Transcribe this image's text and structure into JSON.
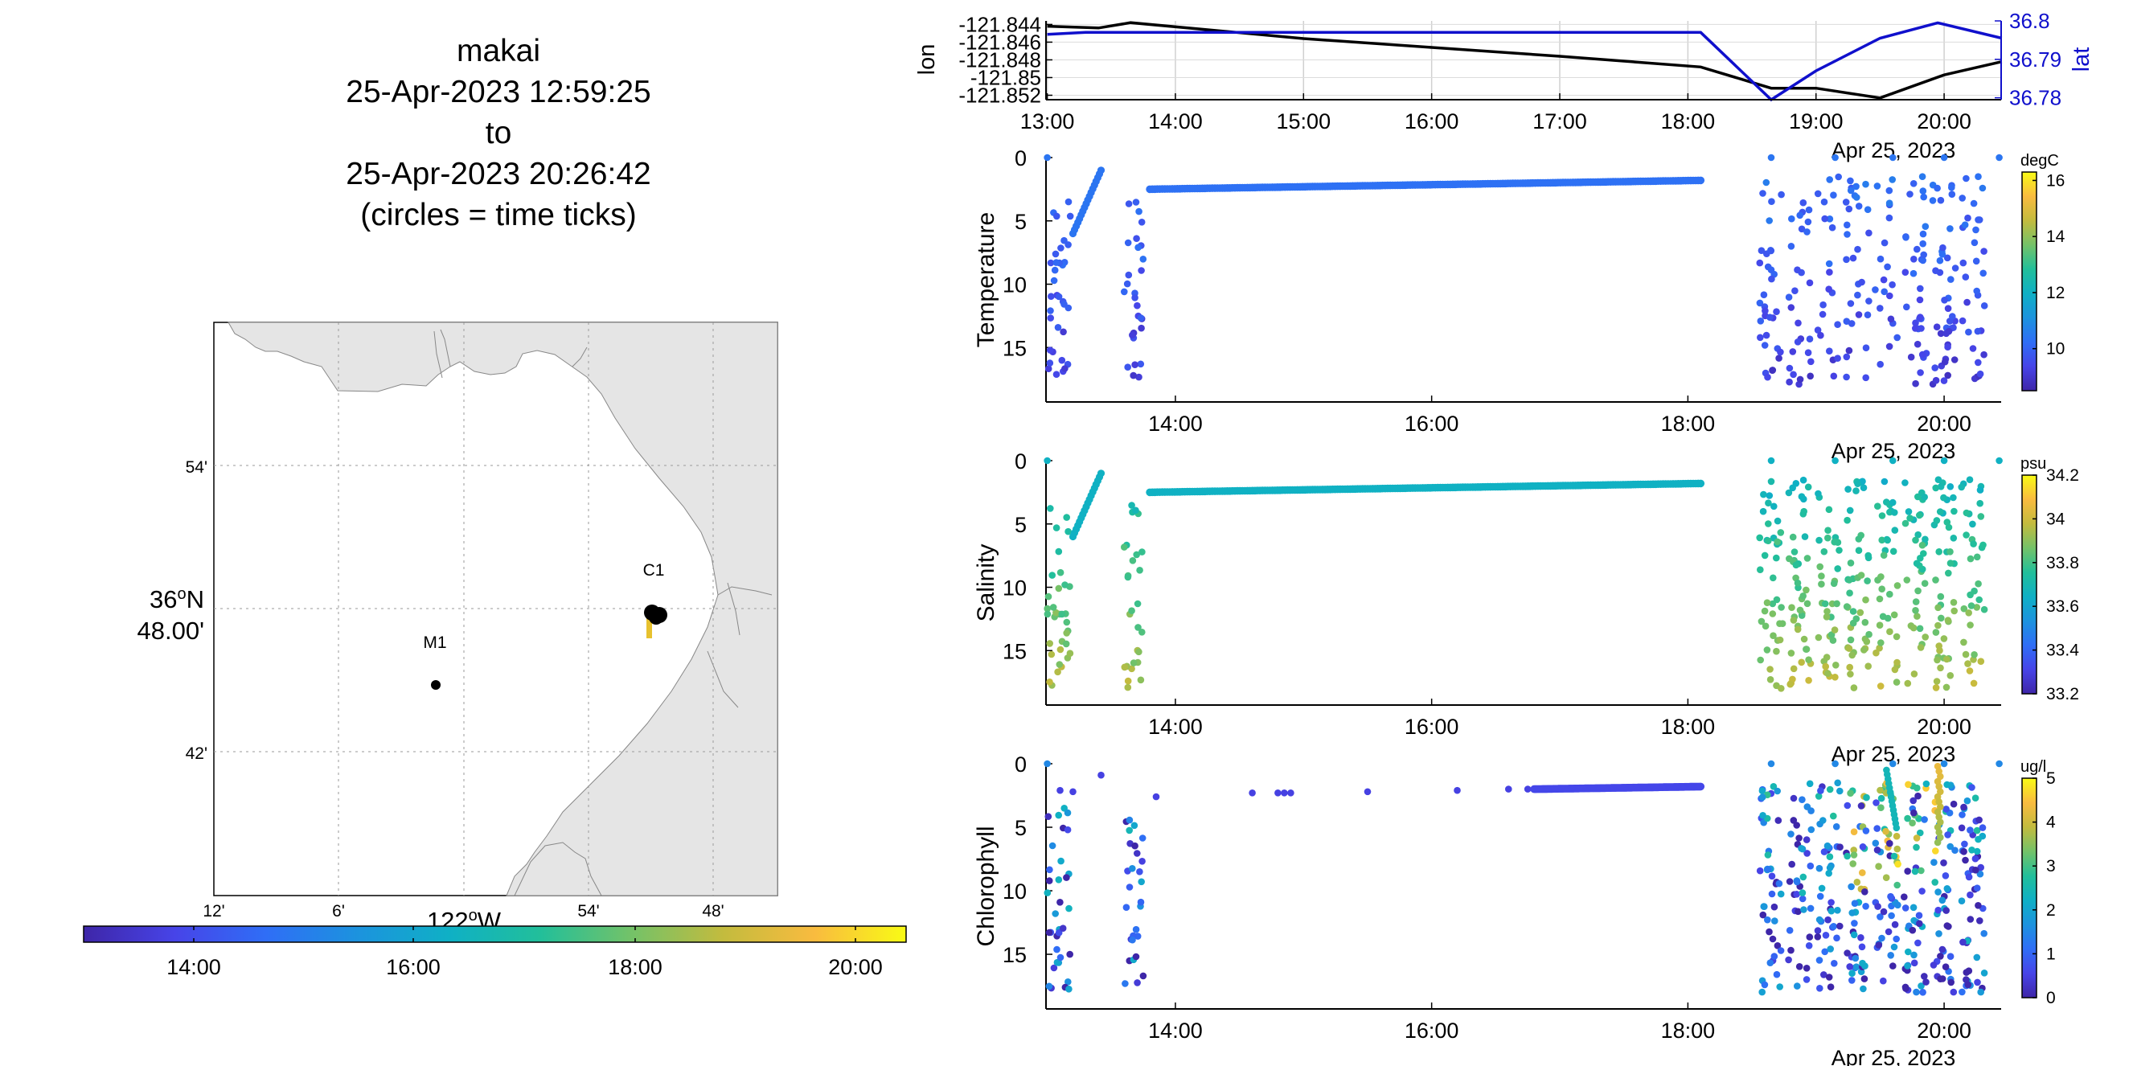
{
  "title": {
    "platform": "makai",
    "start": "25-Apr-2023 12:59:25",
    "to": "to",
    "end": "25-Apr-2023 20:26:42",
    "note": "(circles = time ticks)"
  },
  "map": {
    "lat_ticks": [
      "54'",
      "42'"
    ],
    "lat_center_deg": "36",
    "lat_center_unit": "N",
    "lat_center_min": "48.00'",
    "lon_ticks": [
      "12'",
      "6'",
      "54'",
      "48'"
    ],
    "lon_center_deg": "122",
    "lon_center_unit": "W",
    "stations": [
      {
        "label": "C1",
        "lat": 36.8,
        "lon": -121.845
      },
      {
        "label": "M1",
        "lat": 36.75,
        "lon": -122.02
      }
    ],
    "track_color": "#e7c12e",
    "colorbar_ticks": [
      "14:00",
      "16:00",
      "18:00",
      "20:00"
    ]
  },
  "chart_data": [
    {
      "type": "line",
      "name": "position",
      "x_ticks": [
        "13:00",
        "14:00",
        "15:00",
        "16:00",
        "17:00",
        "18:00",
        "19:00",
        "20:00"
      ],
      "xlabel": "Apr 25, 2023",
      "ylabel_left": "lon",
      "ylabel_right": "lat",
      "left_ticks": [
        "-121.844",
        "-121.846",
        "-121.848",
        "-121.85",
        "-121.852"
      ],
      "right_ticks": [
        "36.8",
        "36.79",
        "36.78"
      ],
      "series": [
        {
          "name": "lon",
          "color": "#000000",
          "axis": "left",
          "x_hours": [
            13.0,
            13.4,
            13.65,
            15.0,
            16.0,
            17.0,
            18.1,
            18.65,
            19.0,
            19.5,
            20.0,
            20.45
          ],
          "values": [
            -121.8442,
            -121.8444,
            -121.8438,
            -121.8456,
            -121.8466,
            -121.8476,
            -121.8488,
            -121.8512,
            -121.8512,
            -121.8523,
            -121.8497,
            -121.8482
          ]
        },
        {
          "name": "lat",
          "color": "#1010cc",
          "axis": "right",
          "x_hours": [
            13.0,
            13.3,
            18.1,
            18.65,
            19.0,
            19.5,
            19.95,
            20.45
          ],
          "values": [
            36.7965,
            36.797,
            36.797,
            36.7795,
            36.787,
            36.7955,
            36.7995,
            36.7955
          ]
        }
      ],
      "x_range": [
        "12:59",
        "20:27"
      ]
    },
    {
      "type": "scatter",
      "name": "temperature",
      "ylabel": "Temperature",
      "colorbar_unit": "degC",
      "colorbar_ticks": [
        "16",
        "14",
        "12",
        "10"
      ],
      "colorbar_range": [
        8.5,
        16.3
      ],
      "y_ticks": [
        "0",
        "5",
        "10",
        "15"
      ],
      "x_ticks": [
        "14:00",
        "16:00",
        "18:00",
        "20:00"
      ],
      "xlabel": "Apr 25, 2023",
      "surface_line": {
        "x_hours": [
          13.8,
          18.1
        ],
        "depth": [
          2.5,
          1.8
        ],
        "value": 10.3
      },
      "profile_groups": [
        {
          "x_start": 13.0,
          "x_end": 13.2,
          "count": 34
        },
        {
          "x_start": 13.6,
          "x_end": 13.8,
          "count": 28
        },
        {
          "x_start": 18.6,
          "x_end": 20.45,
          "count": 240
        }
      ],
      "value_range_at_depth": {
        "surface": 10.4,
        "bottom": 9.2
      }
    },
    {
      "type": "scatter",
      "name": "salinity",
      "ylabel": "Salinity",
      "colorbar_unit": "psu",
      "colorbar_ticks": [
        "34.2",
        "34",
        "33.8",
        "33.6",
        "33.4",
        "33.2"
      ],
      "colorbar_range": [
        33.2,
        34.2
      ],
      "y_ticks": [
        "0",
        "5",
        "10",
        "15"
      ],
      "x_ticks": [
        "14:00",
        "16:00",
        "18:00",
        "20:00"
      ],
      "xlabel": "Apr 25, 2023",
      "surface_line": {
        "x_hours": [
          13.8,
          18.1
        ],
        "depth": [
          2.5,
          1.8
        ],
        "value": 33.65
      },
      "profile_groups": [
        {
          "x_start": 13.0,
          "x_end": 13.2,
          "count": 34
        },
        {
          "x_start": 13.6,
          "x_end": 13.8,
          "count": 28
        },
        {
          "x_start": 18.6,
          "x_end": 20.45,
          "count": 320
        }
      ],
      "value_range_at_depth": {
        "surface": 33.65,
        "bottom": 33.95
      }
    },
    {
      "type": "scatter",
      "name": "chlorophyll",
      "ylabel": "Chlorophyll",
      "colorbar_unit": "ug/l",
      "colorbar_ticks": [
        "5",
        "4",
        "3",
        "2",
        "1",
        "0"
      ],
      "colorbar_range": [
        0,
        5
      ],
      "y_ticks": [
        "0",
        "5",
        "10",
        "15"
      ],
      "x_ticks": [
        "14:00",
        "16:00",
        "18:00",
        "20:00"
      ],
      "xlabel": "Apr 25, 2023",
      "surface_line": {
        "x_hours": [
          16.8,
          18.1
        ],
        "depth": [
          2.0,
          1.8
        ],
        "value": 0.6
      },
      "profile_groups": [
        {
          "x_start": 13.0,
          "x_end": 13.2,
          "count": 34
        },
        {
          "x_start": 13.6,
          "x_end": 13.8,
          "count": 28
        },
        {
          "x_start": 18.6,
          "x_end": 20.45,
          "count": 380
        }
      ],
      "value_range_at_depth": {
        "surface": 1.5,
        "bottom": 0.6
      }
    }
  ],
  "colormap": [
    "#3e26a8",
    "#4744e8",
    "#2f6ef6",
    "#1c93de",
    "#0fb0c5",
    "#22bf9a",
    "#74c268",
    "#c3bb3e",
    "#f9bb3f",
    "#f9fb15"
  ]
}
